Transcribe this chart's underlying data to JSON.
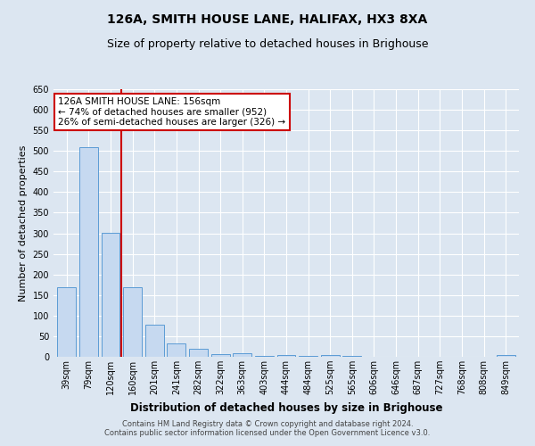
{
  "title": "126A, SMITH HOUSE LANE, HALIFAX, HX3 8XA",
  "subtitle": "Size of property relative to detached houses in Brighouse",
  "xlabel": "Distribution of detached houses by size in Brighouse",
  "ylabel": "Number of detached properties",
  "categories": [
    "39sqm",
    "79sqm",
    "120sqm",
    "160sqm",
    "201sqm",
    "241sqm",
    "282sqm",
    "322sqm",
    "363sqm",
    "403sqm",
    "444sqm",
    "484sqm",
    "525sqm",
    "565sqm",
    "606sqm",
    "646sqm",
    "687sqm",
    "727sqm",
    "768sqm",
    "808sqm",
    "849sqm"
  ],
  "values": [
    168,
    510,
    302,
    168,
    77,
    33,
    20,
    7,
    8,
    2,
    5,
    2,
    5,
    2,
    0,
    0,
    0,
    0,
    0,
    0,
    5
  ],
  "bar_color": "#c6d9f0",
  "bar_edge_color": "#5b9bd5",
  "background_color": "#dce6f1",
  "grid_color": "#ffffff",
  "annotation_text": "126A SMITH HOUSE LANE: 156sqm\n← 74% of detached houses are smaller (952)\n26% of semi-detached houses are larger (326) →",
  "annotation_box_color": "#ffffff",
  "annotation_box_edge_color": "#cc0000",
  "redline_color": "#cc0000",
  "redline_x": 2.5,
  "ylim": [
    0,
    650
  ],
  "yticks": [
    0,
    50,
    100,
    150,
    200,
    250,
    300,
    350,
    400,
    450,
    500,
    550,
    600,
    650
  ],
  "footer_line1": "Contains HM Land Registry data © Crown copyright and database right 2024.",
  "footer_line2": "Contains public sector information licensed under the Open Government Licence v3.0.",
  "title_fontsize": 10,
  "subtitle_fontsize": 9,
  "tick_fontsize": 7,
  "ylabel_fontsize": 8,
  "xlabel_fontsize": 8.5,
  "annotation_fontsize": 7.5,
  "footer_fontsize": 6
}
